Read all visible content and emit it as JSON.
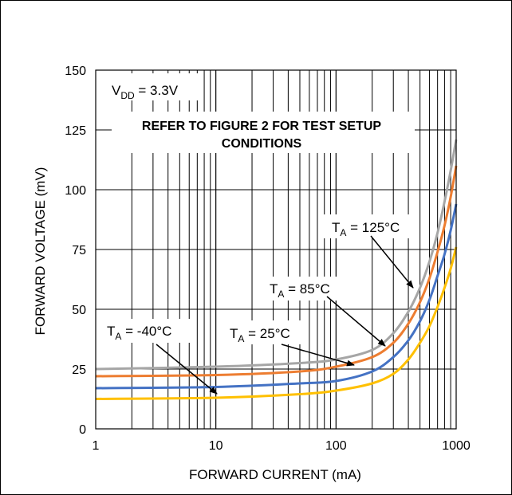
{
  "chart_data": {
    "type": "line",
    "x_scale": "log",
    "xlabel": "FORWARD CURRENT (mA)",
    "ylabel": "FORWARD VOLTAGE (mV)",
    "xlim": [
      1,
      1000
    ],
    "ylim": [
      0,
      150
    ],
    "x_ticks": [
      "1",
      "10",
      "100",
      "1000"
    ],
    "y_ticks": [
      "0",
      "25",
      "50",
      "75",
      "100",
      "125",
      "150"
    ],
    "grid": true,
    "condition": {
      "main": "V",
      "sub": "DD",
      "rest": " = 3.3V"
    },
    "note": [
      "REFER TO FIGURE 2 FOR TEST SETUP",
      "CONDITIONS"
    ],
    "series": [
      {
        "name": "T_A = 125°C",
        "label_main": "T",
        "label_sub": "A",
        "label_rest": " = 125°C",
        "color": "#a6a6a6",
        "x": [
          1,
          10,
          50,
          100,
          200,
          300,
          400,
          500,
          600,
          700,
          800,
          900,
          1000
        ],
        "y": [
          25,
          26,
          27.5,
          29,
          33,
          40,
          49,
          59,
          70,
          82,
          95,
          108,
          121
        ]
      },
      {
        "name": "T_A = 85°C",
        "label_main": "T",
        "label_sub": "A",
        "label_rest": " = 85°C",
        "color": "#ed7d31",
        "x": [
          1,
          10,
          50,
          100,
          200,
          300,
          400,
          500,
          600,
          700,
          800,
          900,
          1000
        ],
        "y": [
          22,
          22.5,
          24,
          26,
          30,
          36,
          44,
          53,
          63,
          74,
          85,
          97,
          110
        ]
      },
      {
        "name": "T_A = 25°C",
        "label_main": "T",
        "label_sub": "A",
        "label_rest": " = 25°C",
        "color": "#4472c4",
        "x": [
          1,
          10,
          50,
          100,
          200,
          300,
          400,
          500,
          600,
          700,
          800,
          900,
          1000
        ],
        "y": [
          17,
          17.5,
          19,
          20,
          24,
          30,
          37,
          45,
          54,
          64,
          73,
          83,
          94
        ]
      },
      {
        "name": "T_A = -40°C",
        "label_main": "T",
        "label_sub": "A",
        "label_rest": " = -40°C",
        "color": "#ffc000",
        "x": [
          1,
          10,
          50,
          100,
          200,
          300,
          400,
          500,
          600,
          700,
          800,
          900,
          1000
        ],
        "y": [
          12.5,
          13,
          14.5,
          16,
          19,
          23,
          29,
          36,
          43,
          51,
          59,
          67,
          76
        ]
      }
    ]
  }
}
